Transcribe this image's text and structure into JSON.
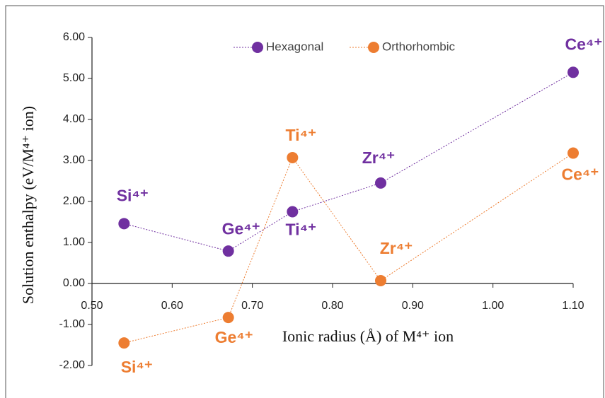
{
  "chart_data": {
    "type": "line",
    "x_label": "Ionic radius (Å) of M⁴⁺ ion",
    "y_label": "Solution enthalpy (eV/M⁴⁺ ion)",
    "x": [
      0.54,
      0.67,
      0.75,
      0.86,
      1.1
    ],
    "series": [
      {
        "name": "Hexagonal",
        "color": "#7030a0",
        "values": [
          1.46,
          0.79,
          1.75,
          2.45,
          5.15
        ],
        "point_labels": [
          "Si⁴⁺",
          "Ge⁴⁺",
          "Ti⁴⁺",
          "Zr⁴⁺",
          "Ce⁴⁺"
        ]
      },
      {
        "name": "Orthorhombic",
        "color": "#ed7d31",
        "values": [
          -1.45,
          -0.83,
          3.07,
          0.07,
          3.18
        ],
        "point_labels": [
          "Si⁴⁺",
          "Ge⁴⁺",
          "Ti⁴⁺",
          "Zr⁴⁺",
          "Ce⁴⁺"
        ]
      }
    ],
    "xlim": [
      0.5,
      1.1
    ],
    "xticks": [
      {
        "value": 0.5,
        "label": "0.50"
      },
      {
        "value": 0.6,
        "label": "0.60"
      },
      {
        "value": 0.7,
        "label": "0.70"
      },
      {
        "value": 0.8,
        "label": "0.80"
      },
      {
        "value": 0.9,
        "label": "0.90"
      },
      {
        "value": 1.0,
        "label": "1.00"
      },
      {
        "value": 1.1,
        "label": "1.10"
      }
    ],
    "ylim": [
      -2,
      6
    ],
    "yticks": [
      {
        "value": -2,
        "label": "-2.00"
      },
      {
        "value": -1,
        "label": "-1.00"
      },
      {
        "value": 0,
        "label": "0.00"
      },
      {
        "value": 1,
        "label": "1.00"
      },
      {
        "value": 2,
        "label": "2.00"
      },
      {
        "value": 3,
        "label": "3.00"
      },
      {
        "value": 4,
        "label": "4.00"
      },
      {
        "value": 5,
        "label": "5.00"
      },
      {
        "value": 6,
        "label": "6.00"
      }
    ],
    "legend": "top"
  }
}
